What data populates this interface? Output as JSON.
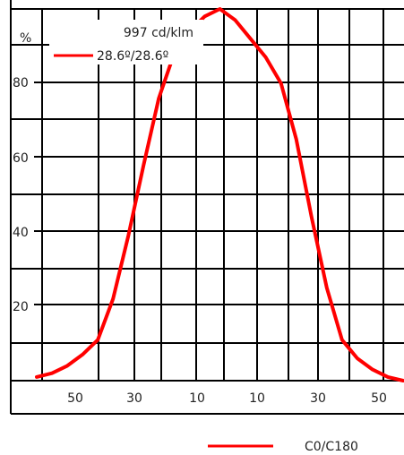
{
  "chart_data": {
    "type": "line",
    "ylabel": "%",
    "y_ticks": [
      "20",
      "40",
      "60",
      "80"
    ],
    "x_ticks": [
      "50",
      "30",
      "10",
      "10",
      "30",
      "50"
    ],
    "ylim": [
      0,
      100
    ],
    "xlim": [
      -60,
      60
    ],
    "grid": true,
    "intensity": "997 cd/klm",
    "series": [
      {
        "name": "28.6º/28.6º",
        "color": "#ff0000",
        "x": [
          -60,
          -55,
          -50,
          -45,
          -40,
          -35,
          -30,
          -25,
          -20,
          -15,
          -10,
          -5,
          0,
          5,
          10,
          15,
          20,
          25,
          30,
          35,
          40,
          45,
          50,
          55,
          60
        ],
        "y": [
          1,
          2,
          4,
          7,
          11,
          22,
          39,
          58,
          76,
          88,
          94,
          98,
          100,
          97,
          92,
          87,
          80,
          65,
          44,
          25,
          11,
          6,
          3,
          1,
          0
        ]
      }
    ],
    "bottom_legend": {
      "label": "C0/C180",
      "color": "#ff0000"
    }
  }
}
